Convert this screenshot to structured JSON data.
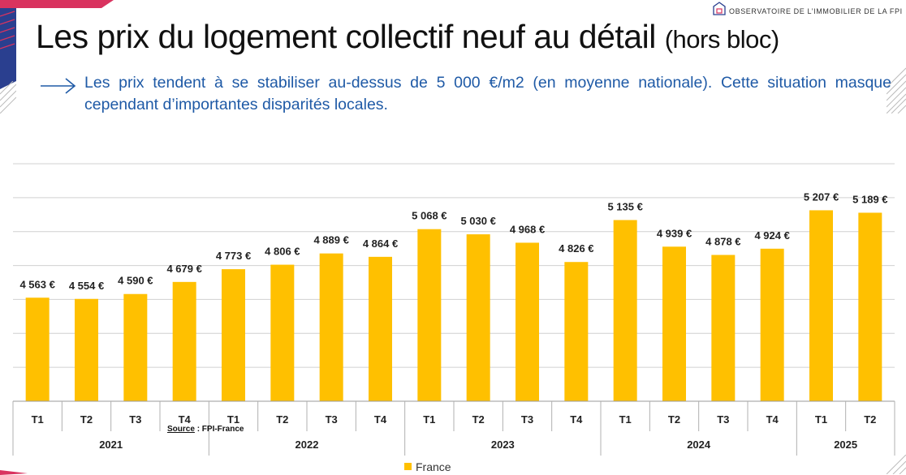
{
  "header": {
    "title": "Les prix du logement collectif neuf au détail",
    "title_suffix": "(hors bloc)",
    "subtitle": "Les prix tendent à se stabiliser au-dessus de 5 000 €/m2 (en moyenne nationale). Cette situation masque cependant d’importantes disparités locales.",
    "logo_text": "OBSERVATOIRE DE L’IMMOBILIER DE LA FPI"
  },
  "source": {
    "label": "Source",
    "value": ": FPI-France"
  },
  "colors": {
    "bar": "#ffc000",
    "subtitle": "#1f5aa6",
    "accent_pink": "#d9335f",
    "accent_navy": "#2a3f8f"
  },
  "chart_data": {
    "type": "bar",
    "title": "",
    "xlabel": "",
    "ylabel": "",
    "ylim": [
      3800,
      5550
    ],
    "grid": true,
    "legend_position": "bottom",
    "categories": [
      "T1",
      "T2",
      "T3",
      "T4",
      "T1",
      "T2",
      "T3",
      "T4",
      "T1",
      "T2",
      "T3",
      "T4",
      "T1",
      "T2",
      "T3",
      "T4",
      "T1",
      "T2"
    ],
    "groups": [
      {
        "label": "2021",
        "count": 4
      },
      {
        "label": "2022",
        "count": 4
      },
      {
        "label": "2023",
        "count": 4
      },
      {
        "label": "2024",
        "count": 4
      },
      {
        "label": "2025",
        "count": 2
      }
    ],
    "series": [
      {
        "name": "France",
        "values": [
          4563,
          4554,
          4590,
          4679,
          4773,
          4806,
          4889,
          4864,
          5068,
          5030,
          4968,
          4826,
          5135,
          4939,
          4878,
          4924,
          5207,
          5189
        ],
        "labels": [
          "4 563 €",
          "4 554 €",
          "4 590 €",
          "4 679 €",
          "4 773 €",
          "4 806 €",
          "4 889 €",
          "4 864 €",
          "5 068 €",
          "5 030 €",
          "4 968 €",
          "4 826 €",
          "5 135 €",
          "4 939 €",
          "4 878 €",
          "4 924 €",
          "5 207 €",
          "5 189 €"
        ]
      }
    ]
  }
}
